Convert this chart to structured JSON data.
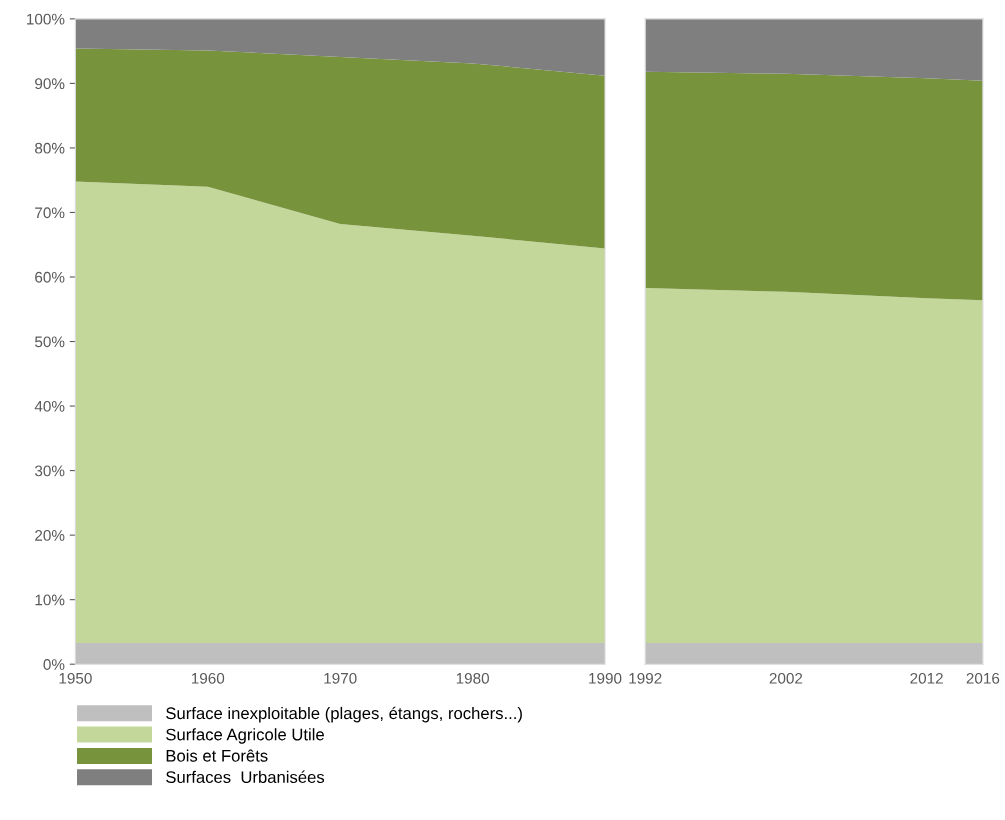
{
  "chart_data": [
    {
      "type": "area",
      "stacked": true,
      "x": [
        1950,
        1960,
        1970,
        1980,
        1990
      ],
      "xlim": [
        1950,
        1990
      ],
      "xticks": [
        1950,
        1960,
        1970,
        1980,
        1990
      ],
      "ylim": [
        0,
        100
      ],
      "yticks": [
        {
          "value": 0,
          "label": "0%"
        },
        {
          "value": 10,
          "label": "10%"
        },
        {
          "value": 20,
          "label": "20%"
        },
        {
          "value": 30,
          "label": "30%"
        },
        {
          "value": 40,
          "label": "40%"
        },
        {
          "value": 50,
          "label": "50%"
        },
        {
          "value": 60,
          "label": "60%"
        },
        {
          "value": 70,
          "label": "70%"
        },
        {
          "value": 80,
          "label": "80%"
        },
        {
          "value": 90,
          "label": "90%"
        },
        {
          "value": 100,
          "label": "100%"
        }
      ],
      "grid": false,
      "legend": "bottom",
      "series": [
        {
          "name": "Surface inexploitable (plages, étangs, rochers...)",
          "color": "#bfbfbf",
          "values": [
            3.3,
            3.3,
            3.3,
            3.3,
            3.3
          ]
        },
        {
          "name": "Surface Agricole Utile",
          "color": "#c4d79b",
          "values": [
            71.5,
            70.7,
            64.9,
            63.1,
            61.1
          ]
        },
        {
          "name": "Bois et Forêts",
          "color": "#77933c",
          "values": [
            20.6,
            21.1,
            25.9,
            26.7,
            26.8
          ]
        },
        {
          "name": "Surfaces  Urbanisées",
          "color": "#7f7f7f",
          "values": [
            4.6,
            4.9,
            5.9,
            6.9,
            8.8
          ]
        }
      ]
    },
    {
      "type": "area",
      "stacked": true,
      "x": [
        1992,
        2002,
        2012,
        2016
      ],
      "xlim": [
        1992,
        2016
      ],
      "xticks": [
        1992,
        2002,
        2012,
        2016
      ],
      "ylim": [
        0,
        100
      ],
      "tick_labels": "x",
      "grid": false,
      "series": [
        {
          "color": "#bfbfbf",
          "values": [
            3.3,
            3.3,
            3.3,
            3.3
          ]
        },
        {
          "color": "#c4d79b",
          "values": [
            55.0,
            54.4,
            53.4,
            53.1
          ]
        },
        {
          "color": "#77933c",
          "values": [
            33.5,
            33.8,
            34.1,
            34.0
          ]
        },
        {
          "color": "#7f7f7f",
          "values": [
            8.2,
            8.5,
            9.2,
            9.6
          ]
        }
      ]
    }
  ]
}
